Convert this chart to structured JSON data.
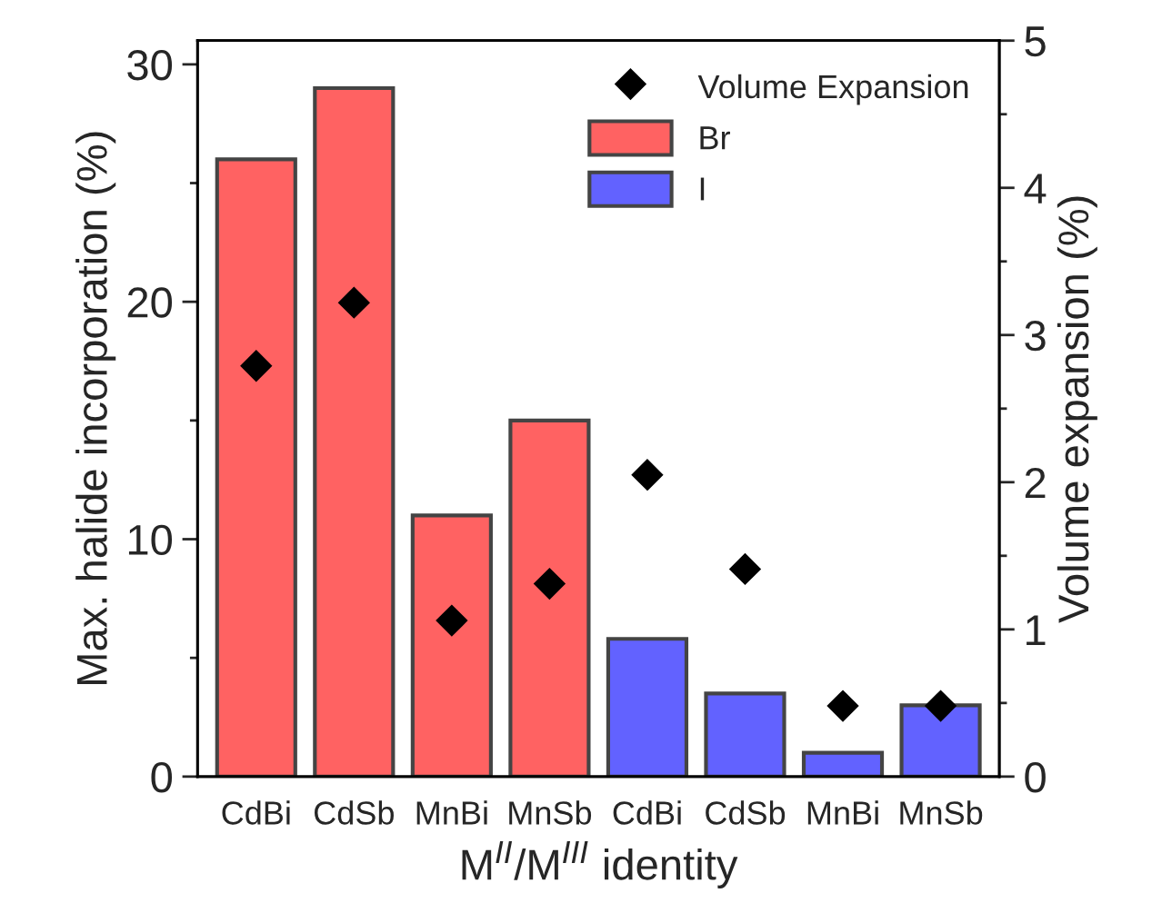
{
  "chart_data": {
    "type": "bar",
    "xlabel": "M$^{II}$/M$^{III}$ identity",
    "ylabel": "Max. halide incorporation (%)",
    "y2label": "Volume expansion (%)",
    "categories": [
      "CdBi",
      "CdSb",
      "MnBi",
      "MnSb",
      "CdBi",
      "CdSb",
      "MnBi",
      "MnSb"
    ],
    "series": [
      {
        "name": "Volume Expansion",
        "type": "scatter",
        "axis": "y2",
        "color": "#000000",
        "marker": "diamond",
        "values": [
          2.79,
          3.22,
          1.06,
          1.31,
          2.05,
          1.41,
          0.48,
          0.48
        ]
      },
      {
        "name": "Br",
        "color": "#ff6262",
        "values": [
          26,
          29,
          11,
          15,
          null,
          null,
          null,
          null
        ]
      },
      {
        "name": "I",
        "color": "#6262ff",
        "values": [
          null,
          null,
          null,
          null,
          5.8,
          3.5,
          1.0,
          3.0
        ]
      }
    ],
    "ylim": [
      0,
      31
    ],
    "yticks": [
      0,
      {
        "value": 5,
        "label": null
      },
      10,
      {
        "value": 15,
        "label": null
      },
      20,
      {
        "value": 25,
        "label": null
      },
      30
    ],
    "y2lim": [
      0,
      5
    ],
    "y2ticks": [
      0,
      {
        "value": 0.5,
        "label": null
      },
      1,
      {
        "value": 1.5,
        "label": null
      },
      2,
      {
        "value": 2.5,
        "label": null
      },
      3,
      {
        "value": 3.5,
        "label": null
      },
      4,
      {
        "value": 4.5,
        "label": null
      },
      5
    ],
    "legend": "top right",
    "grid": false
  }
}
